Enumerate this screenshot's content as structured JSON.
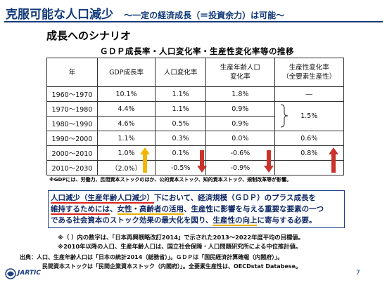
{
  "header": {
    "title": "克服可能な人口減少",
    "subtitle": "～一定の経済成長（＝投資余力）は可能～"
  },
  "section": {
    "title": "成長へのシナリオ"
  },
  "table": {
    "title": "ＧＤＰ成長率・人口変化率・生産性変化率等の推移",
    "headers": {
      "year": "年",
      "gdp": "GDP成長率",
      "pop": "人口変化率",
      "work_line1": "生産年齢人口",
      "work_line2": "変化率",
      "tfp_line1": "生産性変化率",
      "tfp_line2": "（全要素生産性）"
    },
    "rows": [
      {
        "year": "1960～1970",
        "gdp": "10.1%",
        "pop": "1.1%",
        "work": "1.8%",
        "tfp": "―"
      },
      {
        "year": "1970～1980",
        "gdp": "4.4%",
        "pop": "1.1%",
        "work": "0.9%",
        "tfp": ""
      },
      {
        "year": "1980～1990",
        "gdp": "4.6%",
        "pop": "0.5%",
        "work": "0.9%",
        "tfp": ""
      },
      {
        "year": "1990～2000",
        "gdp": "1.1%",
        "pop": "0.3%",
        "work": "0.0%",
        "tfp": "0.6%"
      },
      {
        "year": "2000～2010",
        "gdp": "1.0%",
        "pop": "0.1%",
        "work": "-0.6%",
        "tfp": "0.8%"
      },
      {
        "year": "2010～2030",
        "gdp": "（2.0%）",
        "pop": "-0.5%",
        "work": "-0.9%",
        "tfp": ""
      }
    ],
    "tfp_merged": "1.5%",
    "footnote": "※GDPには、労働力、民間資本ストックのほか、公的資本ストック、知的資本ストック、規制改革等が影響。"
  },
  "callout": {
    "part1": "人口減少（生産年齢人口減少）",
    "part2": "下において、経済規模（ＧＤＰ）のプラス成長を",
    "part3": "維持するためには",
    "part4": "、",
    "part5": "女性・高齢者の活用",
    "part6": "、生産性に影響を与える重要な要素の一つ",
    "part7": "である社会資本のストック効果の最大化を図り、",
    "part8": "生産性の向上",
    "part9": "に寄与する必要。"
  },
  "notes": {
    "note1": "※（ ）内の数字は、「日本再興戦略改訂2014」で示された2013～2022年度平均の目標値。",
    "note2": "※2010年以降の人口、生産年齢人口は、国立社会保障・人口問題研究所による中位推計値。"
  },
  "source": {
    "line1": "出典：人口、生産年齢人口は「日本の統計2014（総務省）」。ＧＤＰは「国民経済計算確報（内閣府）」。",
    "line2": "民間資本ストックは「民間企業資本ストック（内閣府）」。全要素生産性は、OECDstat Databese。"
  },
  "footer": {
    "logo_text": "JARTIC",
    "page": "7"
  },
  "colors": {
    "title": "#123a7a",
    "arrow_up": "#f2b600",
    "arrow_down": "#c9332c",
    "underline_red": "#d9251c",
    "underline_yellow": "#e9b100"
  }
}
